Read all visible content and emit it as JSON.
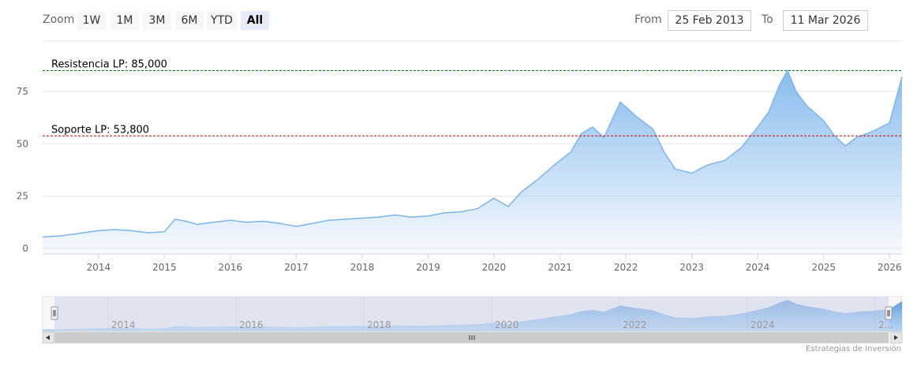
{
  "toolbar": {
    "zoom_label": "Zoom",
    "buttons": [
      "1W",
      "1M",
      "3M",
      "6M",
      "YTD",
      "All"
    ],
    "active_button": "All",
    "from_label": "From",
    "from_value": "25 Feb 2013",
    "to_label": "To",
    "to_value": "11 Mar 2026"
  },
  "credit": "Estrategias de Inversión",
  "colors": {
    "line": "#7cb5ec",
    "fill_top": "#7cb5ec",
    "resistance": "#008000",
    "support": "#cc0000",
    "navigator_mask": "#ccd6eb"
  },
  "navigator": {
    "labels": [
      "2014",
      "2016",
      "2018",
      "2020",
      "2022",
      "2024",
      "2..."
    ]
  },
  "chart_data": {
    "type": "area",
    "title": "",
    "xlabel": "",
    "ylabel": "",
    "x_ticks": [
      "2014",
      "2015",
      "2016",
      "2017",
      "2018",
      "2019",
      "2020",
      "2021",
      "2022",
      "2023",
      "2024",
      "2025",
      "2026"
    ],
    "y_ticks": [
      "0",
      "25",
      "50",
      "75"
    ],
    "ylim": [
      0,
      90
    ],
    "xlim": [
      "2013-02-25",
      "2026-03-11"
    ],
    "grid": true,
    "annotations": [
      {
        "label": "Resistencia LP: 85,000",
        "value": 85,
        "style": "dashed",
        "color": "#008000"
      },
      {
        "label": "Soporte LP: 53,800",
        "value": 53.8,
        "style": "dashed",
        "color": "#cc0000"
      }
    ],
    "series": [
      {
        "x": [
          "2013-02-25",
          "2013-06-01",
          "2013-09-01",
          "2014-01-01",
          "2014-04-01",
          "2014-07-01",
          "2014-10-01",
          "2015-01-01",
          "2015-03-01",
          "2015-05-01",
          "2015-07-01",
          "2015-10-01",
          "2016-01-01",
          "2016-04-01",
          "2016-07-01",
          "2016-10-01",
          "2017-01-01",
          "2017-04-01",
          "2017-07-01",
          "2017-10-01",
          "2018-01-01",
          "2018-04-01",
          "2018-07-01",
          "2018-10-01",
          "2019-01-01",
          "2019-04-01",
          "2019-07-01",
          "2019-10-01",
          "2020-01-01",
          "2020-03-20",
          "2020-06-01",
          "2020-09-01",
          "2020-12-01",
          "2021-03-01",
          "2021-05-01",
          "2021-07-01",
          "2021-09-01",
          "2021-12-01",
          "2022-03-01",
          "2022-06-01",
          "2022-08-01",
          "2022-10-01",
          "2023-01-01",
          "2023-04-01",
          "2023-07-01",
          "2023-10-01",
          "2024-01-01",
          "2024-03-01",
          "2024-05-01",
          "2024-06-15",
          "2024-08-01",
          "2024-10-01",
          "2025-01-01",
          "2025-03-01",
          "2025-05-01",
          "2025-07-01",
          "2025-10-01",
          "2026-01-01",
          "2026-03-11"
        ],
        "values": [
          5.5,
          6,
          7,
          8.5,
          9,
          8.5,
          7.5,
          8,
          14,
          13,
          11.5,
          12.5,
          13.5,
          12.5,
          13,
          12,
          10.5,
          12,
          13.5,
          14,
          14.5,
          15,
          16,
          15,
          15.5,
          17,
          17.5,
          19,
          24,
          20,
          27,
          33,
          40,
          46,
          55,
          58,
          53,
          70,
          63,
          57,
          46,
          38,
          36,
          40,
          42,
          48,
          58,
          65,
          78,
          85,
          75,
          68,
          61,
          54,
          49,
          53,
          56,
          60,
          82
        ]
      }
    ]
  }
}
